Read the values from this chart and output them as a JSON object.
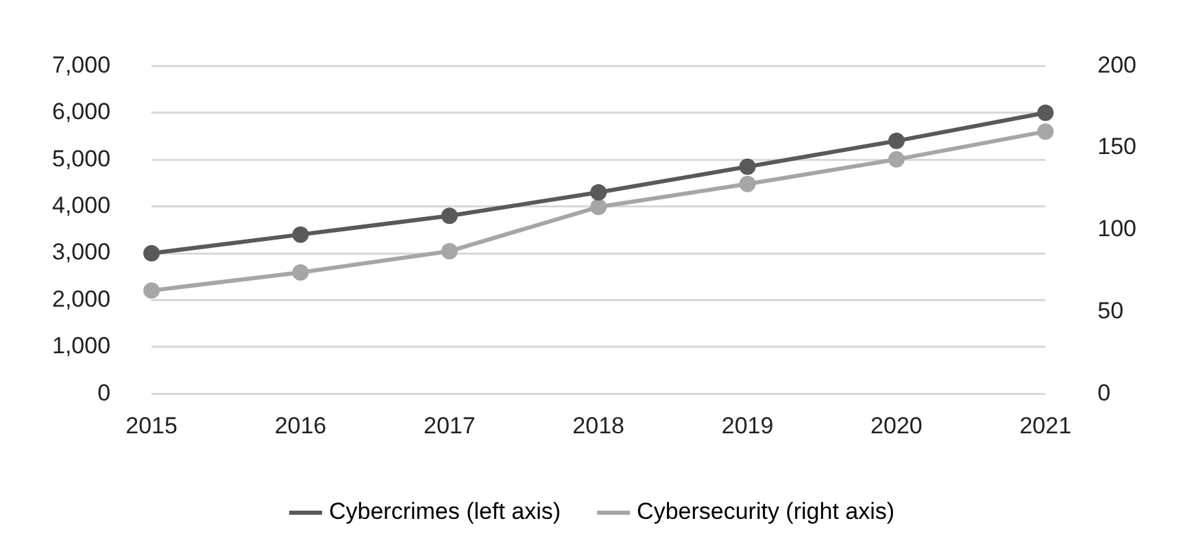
{
  "chart_data": {
    "type": "line",
    "categories": [
      "2015",
      "2016",
      "2017",
      "2018",
      "2019",
      "2020",
      "2021"
    ],
    "series": [
      {
        "name": "Cybercrimes (left axis)",
        "color": "#595959",
        "values": [
          3000,
          3400,
          3800,
          4300,
          4850,
          5400,
          6000
        ]
      },
      {
        "name": "Cybersecurity (right axis)",
        "color": "#a6a6a6",
        "axis": "y2",
        "values": [
          63,
          74,
          87,
          114,
          128,
          143,
          160
        ]
      }
    ],
    "ylim": [
      0,
      7000
    ],
    "yticks": [
      {
        "value": 0,
        "label": "0"
      },
      {
        "value": 1000,
        "label": "1,000"
      },
      {
        "value": 2000,
        "label": "2,000"
      },
      {
        "value": 3000,
        "label": "3,000"
      },
      {
        "value": 4000,
        "label": "4,000"
      },
      {
        "value": 5000,
        "label": "5,000"
      },
      {
        "value": 6000,
        "label": "6,000"
      },
      {
        "value": 7000,
        "label": "7,000"
      }
    ],
    "y2lim": [
      0,
      200
    ],
    "y2ticks": [
      0,
      50,
      100,
      150,
      200
    ],
    "grid": "y",
    "legend": "bottom",
    "marker": "circle",
    "line_style": "solid"
  }
}
